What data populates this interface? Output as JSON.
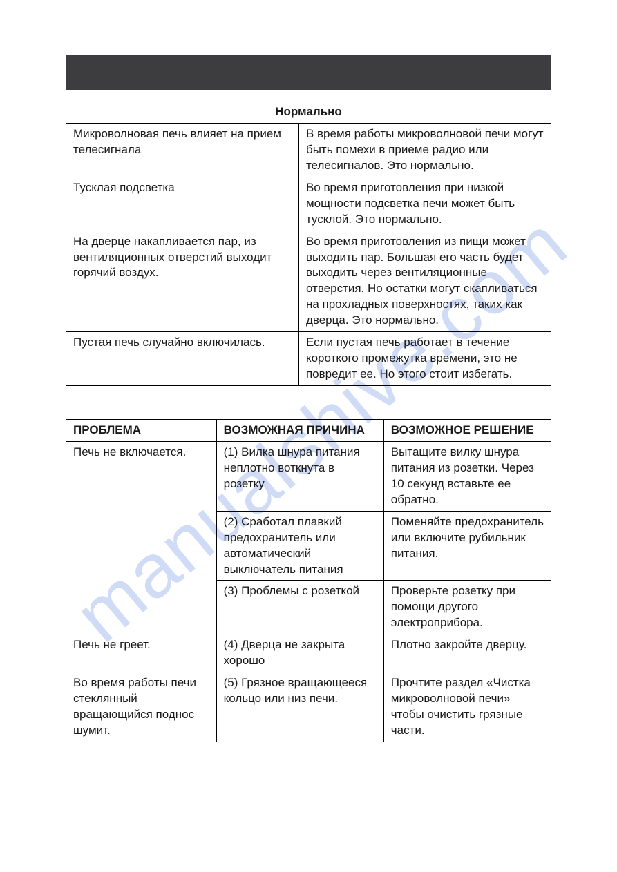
{
  "watermark": "manualshive.com",
  "table1": {
    "header": "Нормально",
    "rows": [
      {
        "left": "Микроволновая печь влияет на прием телесигнала",
        "right": "В время работы микроволновой печи могут быть помехи в приеме радио или телесигналов. Это нормально."
      },
      {
        "left": "Тусклая подсветка",
        "right": "Во время приготовления при низкой мощности подсветка печи может быть тусклой. Это нормально."
      },
      {
        "left": "На дверце накапливается пар, из вентиляционных отверстий выходит горячий воздух.",
        "right": "Во время приготовления из пищи может выходить пар. Большая его часть будет выходить через вентиляционные отверстия. Но остатки могут скапливаться на прохладных поверхностях, таких как дверца. Это нормально."
      },
      {
        "left": "Пустая печь случайно включилась.",
        "right": "Если пустая печь работает в течение короткого промежутка времени, это не повредит ее. Но этого стоит избегать."
      }
    ]
  },
  "table2": {
    "headers": {
      "problem": "ПРОБЛЕМА",
      "cause": "ВОЗМОЖНАЯ ПРИЧИНА",
      "solution": "ВОЗМОЖНОЕ РЕШЕНИЕ"
    },
    "rows": [
      {
        "problem": "Печь не включается.",
        "rowspan": 3,
        "cause": "(1) Вилка шнура питания неплотно воткнута в розетку",
        "solution": "Вытащите вилку шнура питания из розетки. Через 10 секунд вставьте ее обратно."
      },
      {
        "cause": "(2) Сработал плавкий предохранитель или автоматический выключатель питания",
        "solution": "Поменяйте предохранитель или включите рубильник питания."
      },
      {
        "cause": "(3) Проблемы с розеткой",
        "solution": "Проверьте розетку при помощи другого электроприбора."
      },
      {
        "problem": "Печь не греет.",
        "cause": "(4) Дверца не закрыта хорошо",
        "solution": "Плотно закройте дверцу."
      },
      {
        "problem": "Во время работы печи стеклянный вращающийся поднос шумит.",
        "cause": "(5) Грязное вращающееся кольцо или низ печи.",
        "solution": "Прочтите раздел «Чистка микроволновой печи» чтобы очистить грязные части."
      }
    ]
  }
}
